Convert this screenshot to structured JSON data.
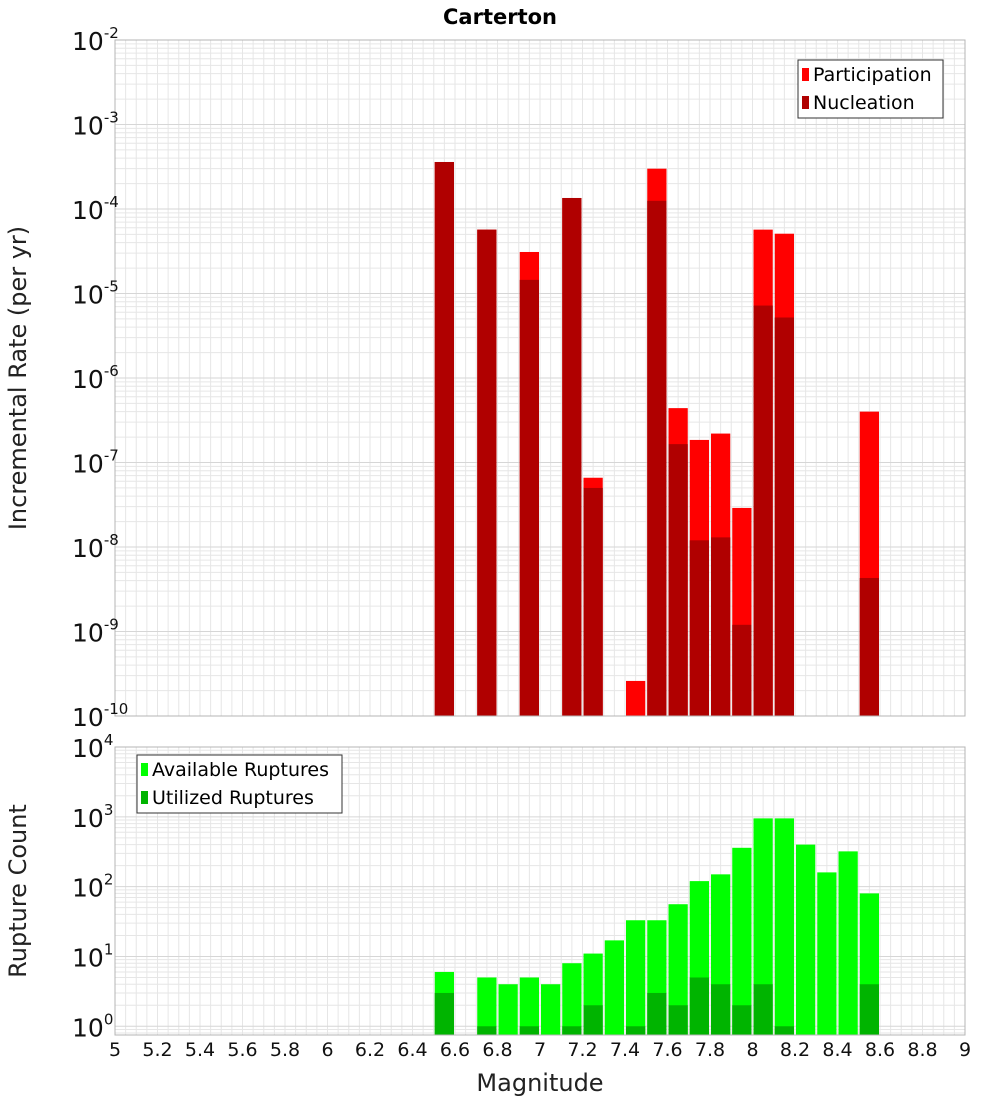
{
  "title": "Carterton",
  "xlabel": "Magnitude",
  "colors": {
    "participation": "#ff0000",
    "nucleation": "#b00000",
    "available": "#00ff00",
    "utilized": "#00b400",
    "grid": "#e6e6e6",
    "plot_border": "#b4b4b4"
  },
  "chart_data": [
    {
      "type": "bar",
      "title": "Carterton",
      "ylabel": "Incremental Rate (per yr)",
      "yscale": "log",
      "ylim": [
        1e-10,
        0.01
      ],
      "xlim": [
        5,
        9
      ],
      "bin_width": 0.1,
      "grid": true,
      "legend_position": "top-right",
      "ytick_labels": [
        {
          "base": "10",
          "exp": "-2"
        },
        {
          "base": "10",
          "exp": "-3"
        },
        {
          "base": "10",
          "exp": "-4"
        },
        {
          "base": "10",
          "exp": "-5"
        },
        {
          "base": "10",
          "exp": "-6"
        },
        {
          "base": "10",
          "exp": "-7"
        },
        {
          "base": "10",
          "exp": "-8"
        },
        {
          "base": "10",
          "exp": "-9"
        },
        {
          "base": "10",
          "exp": "-10"
        }
      ],
      "series": [
        {
          "name": "Participation",
          "x": [
            6.55,
            6.75,
            6.95,
            7.15,
            7.25,
            7.45,
            7.55,
            7.65,
            7.75,
            7.85,
            7.95,
            8.05,
            8.15,
            8.55
          ],
          "values": [
            0.00036,
            5.7e-05,
            3.1e-05,
            0.000135,
            6.6e-08,
            2.6e-10,
            0.0003,
            4.4e-07,
            1.85e-07,
            2.2e-07,
            2.9e-08,
            5.7e-05,
            5.1e-05,
            4e-07
          ]
        },
        {
          "name": "Nucleation",
          "x": [
            6.55,
            6.75,
            6.95,
            7.15,
            7.25,
            7.55,
            7.65,
            7.75,
            7.85,
            7.95,
            8.05,
            8.15,
            8.55
          ],
          "values": [
            0.00036,
            5.7e-05,
            1.45e-05,
            0.000135,
            5e-08,
            0.000125,
            1.65e-07,
            1.2e-08,
            1.3e-08,
            1.2e-09,
            7.2e-06,
            5.2e-06,
            4.3e-09
          ]
        }
      ]
    },
    {
      "type": "bar",
      "ylabel": "Rupture Count",
      "xlabel": "Magnitude",
      "yscale": "log",
      "ylim": [
        0.75,
        10000
      ],
      "xlim": [
        5,
        9
      ],
      "bin_width": 0.1,
      "grid": true,
      "legend_position": "top-left",
      "ytick_labels": [
        {
          "base": "10",
          "exp": "4"
        },
        {
          "base": "10",
          "exp": "3"
        },
        {
          "base": "10",
          "exp": "2"
        },
        {
          "base": "10",
          "exp": "1"
        },
        {
          "base": "10",
          "exp": "0"
        }
      ],
      "xticks": [
        "5",
        "5.2",
        "5.4",
        "5.6",
        "5.8",
        "6",
        "6.2",
        "6.4",
        "6.6",
        "6.8",
        "7",
        "7.2",
        "7.4",
        "7.6",
        "7.8",
        "8",
        "8.2",
        "8.4",
        "8.6",
        "8.8",
        "9"
      ],
      "series": [
        {
          "name": "Available Ruptures",
          "x": [
            6.55,
            6.75,
            6.85,
            6.95,
            7.05,
            7.15,
            7.25,
            7.35,
            7.45,
            7.55,
            7.65,
            7.75,
            7.85,
            7.95,
            8.05,
            8.15,
            8.25,
            8.35,
            8.45,
            8.55
          ],
          "values": [
            6,
            5,
            4,
            5,
            4,
            8,
            11,
            17,
            33,
            33,
            56,
            120,
            150,
            360,
            950,
            950,
            400,
            160,
            320,
            80
          ]
        },
        {
          "name": "Utilized Ruptures",
          "x": [
            6.55,
            6.75,
            6.95,
            7.15,
            7.25,
            7.45,
            7.55,
            7.65,
            7.75,
            7.85,
            7.95,
            8.05,
            8.15,
            8.55
          ],
          "values": [
            3,
            1,
            1,
            1,
            2,
            1,
            3,
            2,
            5,
            4,
            2,
            4,
            1,
            4
          ]
        }
      ]
    }
  ]
}
